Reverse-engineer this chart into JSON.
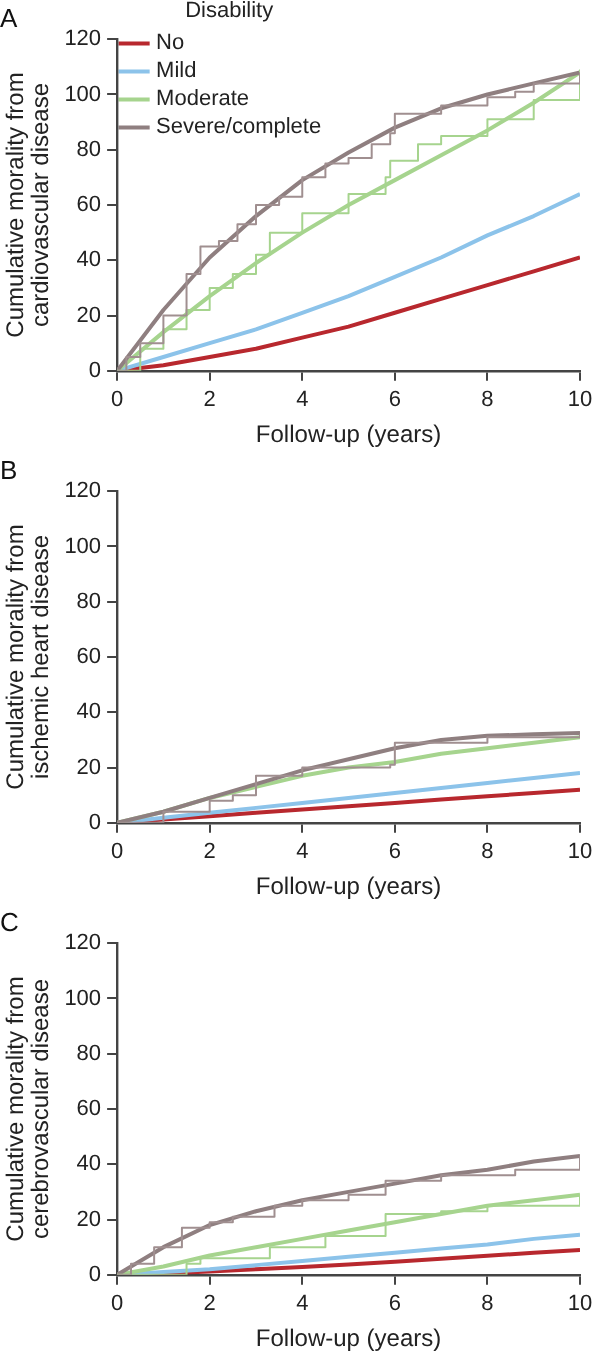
{
  "chart_data": [
    {
      "type": "line",
      "title": "A",
      "xlabel": "Follow-up (years)",
      "ylabel": "Cumulative morality from cardiovascular disease",
      "legend_title": "Disability",
      "legend": "top left",
      "grid": false,
      "marker": "none",
      "line_style": "solid",
      "xlim": [
        0,
        10
      ],
      "xticks": [
        0,
        2,
        4,
        6,
        8,
        10
      ],
      "ylim": [
        0,
        120
      ],
      "yticks": [
        0,
        20,
        40,
        60,
        80,
        100,
        120
      ],
      "x": [
        0,
        1,
        2,
        3,
        4,
        5,
        6,
        7,
        8,
        9,
        10
      ],
      "series": [
        {
          "name": "No",
          "color": "#b8282e",
          "values": [
            0,
            2,
            5,
            8,
            12,
            16,
            21,
            26,
            31,
            36,
            41
          ]
        },
        {
          "name": "Mild",
          "color": "#8cc3ea",
          "values": [
            0,
            5,
            10,
            15,
            21,
            27,
            34,
            41,
            49,
            56,
            64
          ]
        },
        {
          "name": "Moderate",
          "color": "#a6d48e",
          "values": [
            0,
            14,
            27,
            39,
            50,
            60,
            69,
            78,
            87,
            97,
            108
          ]
        },
        {
          "name": "Severe/complete",
          "color": "#8f7f80",
          "values": [
            0,
            22,
            41,
            56,
            69,
            79,
            88,
            95,
            100,
            104,
            108
          ]
        },
        {
          "type": "step",
          "color": "#a6d48e",
          "x": [
            0,
            0.5,
            1,
            1.5,
            2,
            2.5,
            3,
            3.3,
            4,
            5,
            5.8,
            5.9,
            6.5,
            7,
            8,
            9,
            10
          ],
          "values": [
            0,
            8,
            15,
            22,
            30,
            35,
            42,
            50,
            57,
            64,
            70,
            76,
            82,
            85,
            91,
            98,
            109
          ]
        },
        {
          "type": "step",
          "color": "#a08f90",
          "x": [
            0,
            0.2,
            0.5,
            1,
            1.5,
            1.8,
            2.2,
            2.6,
            3,
            3.5,
            4,
            4.5,
            5,
            5.5,
            5.9,
            6,
            7,
            8,
            8.6,
            9,
            10
          ],
          "values": [
            0,
            5,
            10,
            20,
            35,
            45,
            47,
            53,
            60,
            63,
            70,
            75,
            77,
            82,
            86,
            93,
            96,
            99,
            101,
            104,
            108
          ]
        }
      ]
    },
    {
      "type": "line",
      "title": "B",
      "xlabel": "Follow-up (years)",
      "ylabel": "Cumulative morality from ischemic heart disease",
      "grid": false,
      "legend": false,
      "marker": "none",
      "line_style": "solid",
      "xlim": [
        0,
        10
      ],
      "xticks": [
        0,
        2,
        4,
        6,
        8,
        10
      ],
      "ylim": [
        0,
        120
      ],
      "yticks": [
        0,
        20,
        40,
        60,
        80,
        100,
        120
      ],
      "x": [
        0,
        1,
        2,
        3,
        4,
        5,
        6,
        7,
        8,
        9,
        10
      ],
      "series": [
        {
          "color": "#b8282e",
          "values": [
            0,
            1.2,
            2.4,
            3.6,
            4.8,
            6,
            7.2,
            8.4,
            9.6,
            10.8,
            12
          ]
        },
        {
          "color": "#8cc3ea",
          "values": [
            0,
            1.8,
            3.6,
            5.4,
            7.2,
            9,
            10.8,
            12.6,
            14.4,
            16.2,
            18
          ]
        },
        {
          "color": "#a6d48e",
          "values": [
            0,
            4,
            9,
            13,
            17,
            20,
            22,
            25,
            27,
            29,
            31
          ]
        },
        {
          "color": "#8f7f80",
          "values": [
            0,
            4,
            9,
            14,
            19,
            23,
            27,
            30,
            31.5,
            32,
            32.5
          ]
        },
        {
          "type": "step",
          "color": "#a08f90",
          "x": [
            0,
            1,
            2,
            2.5,
            3,
            4,
            5.9,
            6,
            8,
            10
          ],
          "values": [
            0,
            4,
            8,
            10,
            17,
            20,
            21,
            29,
            31,
            32
          ]
        }
      ]
    },
    {
      "type": "line",
      "title": "C",
      "xlabel": "Follow-up (years)",
      "ylabel": "Cumulative morality from cerebrovascular disease",
      "grid": false,
      "legend": false,
      "marker": "none",
      "line_style": "solid",
      "xlim": [
        0,
        10
      ],
      "xticks": [
        0,
        2,
        4,
        6,
        8,
        10
      ],
      "ylim": [
        0,
        120
      ],
      "yticks": [
        0,
        20,
        40,
        60,
        80,
        100,
        120
      ],
      "x": [
        0,
        1,
        2,
        3,
        4,
        5,
        6,
        7,
        8,
        9,
        10
      ],
      "series": [
        {
          "color": "#b8282e",
          "values": [
            0,
            0.5,
            1.2,
            2,
            2.8,
            3.7,
            4.7,
            5.8,
            6.9,
            8,
            9
          ]
        },
        {
          "color": "#8cc3ea",
          "values": [
            0,
            1,
            2,
            3.5,
            5,
            6.5,
            8,
            9.5,
            11,
            13,
            14.5
          ]
        },
        {
          "color": "#a6d48e",
          "values": [
            0,
            3,
            7,
            10,
            13,
            16,
            19,
            22,
            25,
            27,
            29
          ]
        },
        {
          "color": "#8f7f80",
          "values": [
            0,
            10,
            18,
            23,
            27,
            30,
            33,
            36,
            38,
            41,
            43
          ]
        },
        {
          "type": "step",
          "color": "#a6d48e",
          "x": [
            0,
            1.5,
            1.8,
            3.3,
            4.5,
            5.8,
            5.8,
            7,
            8,
            10
          ],
          "values": [
            0,
            4,
            6,
            10,
            14,
            15,
            22,
            23,
            25,
            29
          ]
        },
        {
          "type": "step",
          "color": "#a08f90",
          "x": [
            0,
            0.3,
            0.8,
            1.4,
            2,
            2.5,
            3.4,
            4,
            5,
            5.8,
            7,
            8.6,
            10
          ],
          "values": [
            0,
            4,
            10,
            17,
            19,
            21,
            25,
            27,
            29,
            34,
            36,
            38,
            43
          ]
        }
      ]
    }
  ]
}
